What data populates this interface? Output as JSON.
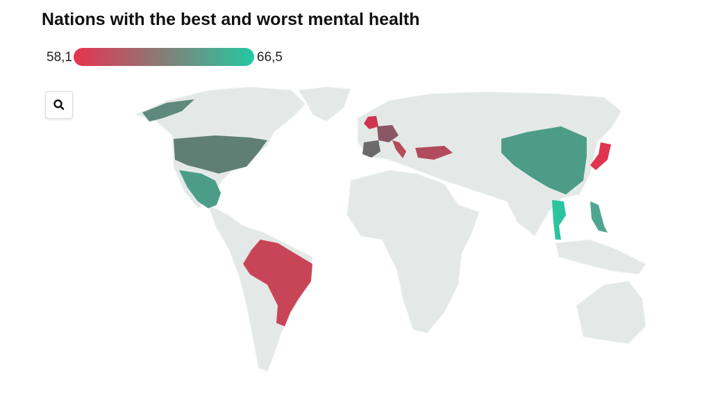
{
  "title": "Nations with the best and worst mental health",
  "legend": {
    "min": {
      "value": 58.1,
      "label": "58,1"
    },
    "max": {
      "value": 66.5,
      "label": "66,5"
    },
    "colors": [
      "#e8334f",
      "#22c9a2"
    ]
  }
}
